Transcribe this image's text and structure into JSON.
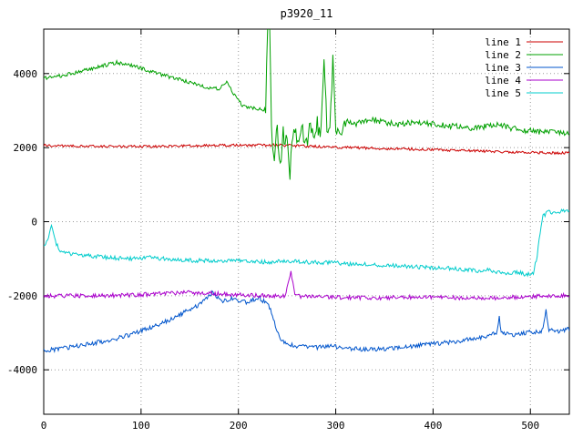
{
  "chart_data": {
    "type": "line",
    "title": "p3920_11",
    "xlabel": "",
    "ylabel": "",
    "xlim": [
      0,
      540
    ],
    "ylim": [
      -5200,
      5200
    ],
    "x_ticks": [
      0,
      100,
      200,
      300,
      400,
      500
    ],
    "y_ticks": [
      -4000,
      -2000,
      0,
      2000,
      4000
    ],
    "grid": true,
    "grid_style": "dotted",
    "legend_position": "top-right",
    "background": "#ffffff",
    "border_color": "#000000",
    "grid_color": "#9a9a9a",
    "series": [
      {
        "name": "line 1",
        "color": "#cc0000",
        "noise": 35,
        "points": [
          [
            0,
            2060
          ],
          [
            60,
            2030
          ],
          [
            120,
            2030
          ],
          [
            180,
            2060
          ],
          [
            240,
            2070
          ],
          [
            270,
            2040
          ],
          [
            300,
            2010
          ],
          [
            360,
            1970
          ],
          [
            420,
            1930
          ],
          [
            480,
            1880
          ],
          [
            540,
            1850
          ]
        ]
      },
      {
        "name": "line 2",
        "color": "#00a000",
        "noise": 50,
        "noise_regions": [
          {
            "from": 228,
            "to": 310,
            "amp": 260
          },
          {
            "from": 310,
            "to": 540,
            "amp": 80
          }
        ],
        "points": [
          [
            0,
            3880
          ],
          [
            15,
            3930
          ],
          [
            35,
            4030
          ],
          [
            55,
            4180
          ],
          [
            75,
            4300
          ],
          [
            90,
            4220
          ],
          [
            110,
            4060
          ],
          [
            130,
            3900
          ],
          [
            150,
            3760
          ],
          [
            168,
            3620
          ],
          [
            180,
            3580
          ],
          [
            188,
            3750
          ],
          [
            196,
            3400
          ],
          [
            205,
            3120
          ],
          [
            215,
            3060
          ],
          [
            224,
            3020
          ],
          [
            228,
            3050
          ],
          [
            230,
            5400
          ],
          [
            232,
            5400
          ],
          [
            234,
            2500
          ],
          [
            237,
            1800
          ],
          [
            240,
            2600
          ],
          [
            243,
            1500
          ],
          [
            246,
            2400
          ],
          [
            250,
            2050
          ],
          [
            253,
            1350
          ],
          [
            257,
            2500
          ],
          [
            261,
            2100
          ],
          [
            265,
            2650
          ],
          [
            269,
            2050
          ],
          [
            273,
            2500
          ],
          [
            277,
            2250
          ],
          [
            281,
            2600
          ],
          [
            285,
            2350
          ],
          [
            288,
            4350
          ],
          [
            291,
            2500
          ],
          [
            294,
            2300
          ],
          [
            297,
            4400
          ],
          [
            300,
            2600
          ],
          [
            305,
            2500
          ],
          [
            310,
            2750
          ],
          [
            320,
            2620
          ],
          [
            335,
            2780
          ],
          [
            350,
            2680
          ],
          [
            365,
            2620
          ],
          [
            380,
            2700
          ],
          [
            395,
            2650
          ],
          [
            410,
            2600
          ],
          [
            425,
            2570
          ],
          [
            440,
            2520
          ],
          [
            455,
            2570
          ],
          [
            468,
            2620
          ],
          [
            480,
            2520
          ],
          [
            495,
            2470
          ],
          [
            510,
            2430
          ],
          [
            525,
            2400
          ],
          [
            540,
            2360
          ]
        ]
      },
      {
        "name": "line 3",
        "color": "#0055cc",
        "noise": 60,
        "points": [
          [
            0,
            -3480
          ],
          [
            20,
            -3420
          ],
          [
            40,
            -3330
          ],
          [
            60,
            -3240
          ],
          [
            80,
            -3120
          ],
          [
            100,
            -2950
          ],
          [
            115,
            -2800
          ],
          [
            130,
            -2650
          ],
          [
            142,
            -2480
          ],
          [
            152,
            -2350
          ],
          [
            160,
            -2250
          ],
          [
            168,
            -2050
          ],
          [
            173,
            -1900
          ],
          [
            178,
            -2050
          ],
          [
            185,
            -2150
          ],
          [
            192,
            -2080
          ],
          [
            200,
            -2120
          ],
          [
            208,
            -2180
          ],
          [
            215,
            -2100
          ],
          [
            222,
            -2060
          ],
          [
            228,
            -2200
          ],
          [
            233,
            -2350
          ],
          [
            238,
            -2800
          ],
          [
            243,
            -3150
          ],
          [
            248,
            -3280
          ],
          [
            255,
            -3330
          ],
          [
            265,
            -3380
          ],
          [
            280,
            -3400
          ],
          [
            295,
            -3360
          ],
          [
            310,
            -3420
          ],
          [
            325,
            -3440
          ],
          [
            340,
            -3460
          ],
          [
            355,
            -3420
          ],
          [
            370,
            -3380
          ],
          [
            385,
            -3340
          ],
          [
            400,
            -3300
          ],
          [
            415,
            -3260
          ],
          [
            430,
            -3210
          ],
          [
            445,
            -3150
          ],
          [
            458,
            -3080
          ],
          [
            466,
            -2980
          ],
          [
            468,
            -2550
          ],
          [
            470,
            -3000
          ],
          [
            480,
            -3060
          ],
          [
            490,
            -3020
          ],
          [
            500,
            -2980
          ],
          [
            512,
            -2950
          ],
          [
            516,
            -2400
          ],
          [
            519,
            -2920
          ],
          [
            527,
            -2960
          ],
          [
            534,
            -2930
          ],
          [
            540,
            -2900
          ]
        ]
      },
      {
        "name": "line 4",
        "color": "#aa00cc",
        "noise": 55,
        "points": [
          [
            0,
            -2010
          ],
          [
            40,
            -2000
          ],
          [
            80,
            -1990
          ],
          [
            110,
            -1960
          ],
          [
            130,
            -1930
          ],
          [
            150,
            -1910
          ],
          [
            170,
            -1930
          ],
          [
            190,
            -1960
          ],
          [
            210,
            -1990
          ],
          [
            230,
            -2000
          ],
          [
            248,
            -2010
          ],
          [
            254,
            -1330
          ],
          [
            258,
            -2010
          ],
          [
            280,
            -2030
          ],
          [
            310,
            -2050
          ],
          [
            340,
            -2060
          ],
          [
            370,
            -2040
          ],
          [
            400,
            -2030
          ],
          [
            430,
            -2060
          ],
          [
            460,
            -2060
          ],
          [
            490,
            -2030
          ],
          [
            515,
            -2010
          ],
          [
            540,
            -1990
          ]
        ]
      },
      {
        "name": "line 5",
        "color": "#00cccc",
        "noise": 55,
        "points": [
          [
            0,
            -650
          ],
          [
            4,
            -480
          ],
          [
            8,
            -150
          ],
          [
            12,
            -550
          ],
          [
            16,
            -760
          ],
          [
            24,
            -840
          ],
          [
            36,
            -900
          ],
          [
            50,
            -930
          ],
          [
            70,
            -980
          ],
          [
            90,
            -1000
          ],
          [
            110,
            -970
          ],
          [
            130,
            -1020
          ],
          [
            150,
            -1040
          ],
          [
            170,
            -1060
          ],
          [
            190,
            -1040
          ],
          [
            210,
            -1080
          ],
          [
            230,
            -1090
          ],
          [
            250,
            -1060
          ],
          [
            270,
            -1090
          ],
          [
            290,
            -1100
          ],
          [
            310,
            -1130
          ],
          [
            330,
            -1150
          ],
          [
            350,
            -1180
          ],
          [
            370,
            -1200
          ],
          [
            390,
            -1230
          ],
          [
            410,
            -1250
          ],
          [
            430,
            -1290
          ],
          [
            445,
            -1330
          ],
          [
            455,
            -1300
          ],
          [
            465,
            -1360
          ],
          [
            475,
            -1400
          ],
          [
            485,
            -1350
          ],
          [
            495,
            -1420
          ],
          [
            503,
            -1380
          ],
          [
            507,
            -900
          ],
          [
            510,
            -300
          ],
          [
            513,
            150
          ],
          [
            518,
            260
          ],
          [
            525,
            240
          ],
          [
            532,
            280
          ],
          [
            540,
            300
          ]
        ]
      }
    ]
  }
}
